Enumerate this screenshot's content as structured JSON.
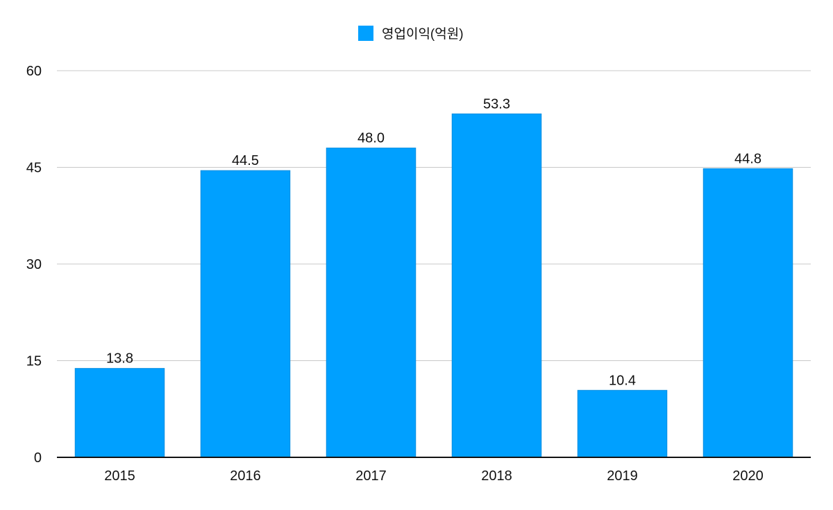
{
  "chart_data": {
    "type": "bar",
    "title": "",
    "xlabel": "",
    "ylabel": "",
    "categories": [
      "2015",
      "2016",
      "2017",
      "2018",
      "2019",
      "2020"
    ],
    "series": [
      {
        "name": "영업이익(억원)",
        "values": [
          13.8,
          44.5,
          48.0,
          53.3,
          10.4,
          44.8
        ],
        "labels": [
          "13.8",
          "44.5",
          "48.0",
          "53.3",
          "10.4",
          "44.8"
        ],
        "color": "#00a0ff"
      }
    ],
    "ylim": [
      0,
      60
    ],
    "yticks": [
      "0",
      "15",
      "30",
      "45",
      "60"
    ],
    "grid": true,
    "legend_position": "top-center"
  }
}
